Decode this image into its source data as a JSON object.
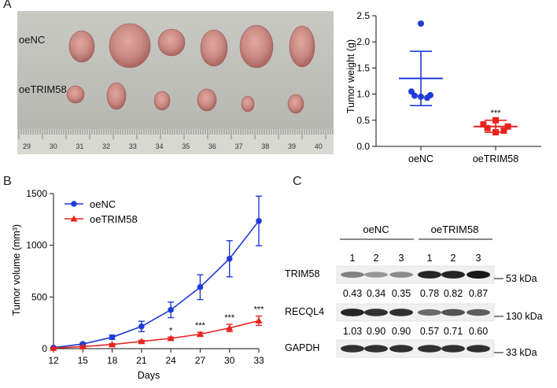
{
  "panels": {
    "a": "A",
    "b": "B",
    "c": "C"
  },
  "photo": {
    "row_labels": [
      "oeNC",
      "oeTRIM58"
    ],
    "ruler_numbers": [
      "29",
      "30",
      "31",
      "32",
      "33",
      "34",
      "35",
      "36",
      "37",
      "38",
      "39",
      "40"
    ]
  },
  "colors": {
    "oeNC": "#1f3bd6",
    "oeTRIM58": "#e8221f",
    "tumor": "#c98a83"
  },
  "chart_data": [
    {
      "type": "scatter",
      "ylabel": "Tumor weight (g)",
      "xlabel": "",
      "ylim": [
        0,
        2.5
      ],
      "yticks": [
        "0.0",
        "0.5",
        "1.0",
        "1.5",
        "2.0",
        "2.5"
      ],
      "categories": [
        "oeNC",
        "oeTRIM58"
      ],
      "series": [
        {
          "name": "oeNC",
          "values": [
            2.35,
            1.05,
            0.98,
            0.97,
            0.93,
            0.95
          ],
          "mean": 1.3,
          "sd_low": 0.78,
          "sd_high": 1.82,
          "marker": "circle"
        },
        {
          "name": "oeTRIM58",
          "values": [
            0.5,
            0.42,
            0.38,
            0.35,
            0.3,
            0.27
          ],
          "mean": 0.38,
          "sd_low": 0.27,
          "sd_high": 0.5,
          "marker": "square"
        }
      ],
      "annotations": [
        {
          "category": "oeTRIM58",
          "text": "***"
        }
      ]
    },
    {
      "type": "line",
      "ylabel": "Tumor volume (mm³)",
      "xlabel": "Days",
      "xticks": [
        "12",
        "15",
        "18",
        "21",
        "24",
        "27",
        "30",
        "33"
      ],
      "yticks": [
        "0",
        "500",
        "1000",
        "1500"
      ],
      "xlim": [
        12,
        33
      ],
      "ylim": [
        0,
        1500
      ],
      "legend": "top-left",
      "x": [
        12,
        15,
        18,
        21,
        24,
        27,
        30,
        33
      ],
      "series": [
        {
          "name": "oeNC",
          "values": [
            10,
            45,
            110,
            215,
            375,
            595,
            870,
            1235
          ],
          "err": [
            5,
            10,
            20,
            50,
            75,
            120,
            175,
            240
          ],
          "marker": "circle"
        },
        {
          "name": "oeTRIM58",
          "values": [
            5,
            20,
            40,
            70,
            100,
            140,
            200,
            270
          ],
          "err": [
            3,
            6,
            8,
            10,
            12,
            18,
            35,
            45
          ],
          "marker": "triangle"
        }
      ],
      "annotations": [
        {
          "x": 24,
          "text": "*"
        },
        {
          "x": 27,
          "text": "***"
        },
        {
          "x": 30,
          "text": "***"
        },
        {
          "x": 33,
          "text": "***"
        }
      ]
    }
  ],
  "blot": {
    "groups": [
      "oeNC",
      "oeTRIM58"
    ],
    "lanes": [
      "1",
      "2",
      "3",
      "1",
      "2",
      "3"
    ],
    "rows": [
      {
        "label": "TRIM58",
        "size": "53 kDa",
        "quant": [
          "0.43",
          "0.34",
          "0.35",
          "0.78",
          "0.82",
          "0.87"
        ],
        "intensity": [
          0.55,
          0.45,
          0.5,
          0.95,
          0.95,
          1.0
        ]
      },
      {
        "label": "RECQL4",
        "size": "130 kDa",
        "quant": [
          "1.03",
          "0.90",
          "0.90",
          "0.57",
          "0.71",
          "0.60"
        ],
        "intensity": [
          0.95,
          0.9,
          0.9,
          0.65,
          0.75,
          0.7
        ]
      },
      {
        "label": "GAPDH",
        "size": "33 kDa",
        "quant": [],
        "intensity": [
          0.9,
          0.9,
          0.9,
          0.9,
          0.9,
          0.9
        ]
      }
    ]
  }
}
